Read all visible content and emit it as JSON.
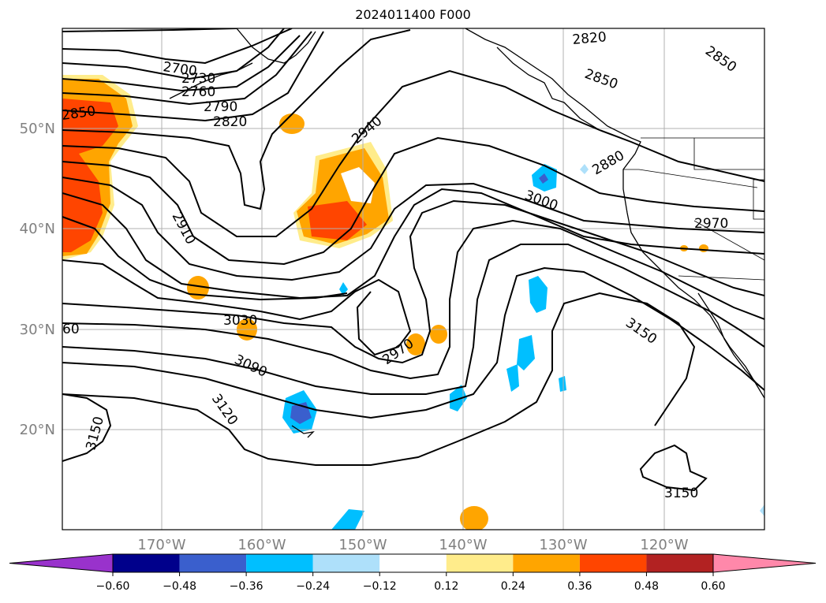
{
  "title": "2024011400 F000",
  "map": {
    "lon_range": [
      -180,
      -110
    ],
    "lat_range": [
      10,
      60
    ],
    "gridlines": true,
    "lat_labels": [
      "50°N",
      "40°N",
      "30°N",
      "20°N"
    ],
    "lon_labels": [
      "170°W",
      "160°W",
      "150°W",
      "140°W",
      "130°W",
      "120°W"
    ],
    "axis_label_color": "#808080",
    "contour_labels": [
      "2700",
      "2730",
      "2760",
      "2790",
      "2820",
      "2850",
      "2940",
      "2910",
      "3030",
      "3090",
      "3120",
      "3150",
      "60",
      "2970",
      "3000",
      "2880",
      "2970",
      "2820",
      "2850",
      "2850",
      "3150",
      "3150"
    ]
  },
  "colorbar": {
    "ticks": [
      "−0.60",
      "−0.48",
      "−0.36",
      "−0.24",
      "−0.12",
      "0.12",
      "0.24",
      "0.36",
      "0.48",
      "0.60"
    ],
    "colors": [
      "#9932cc",
      "#00008b",
      "#3a5fcd",
      "#00bfff",
      "#aee0fa",
      "#ffffff",
      "#ffec8b",
      "#ffa500",
      "#ff4500",
      "#b22222",
      "#ff88aa"
    ],
    "extend": "both"
  }
}
